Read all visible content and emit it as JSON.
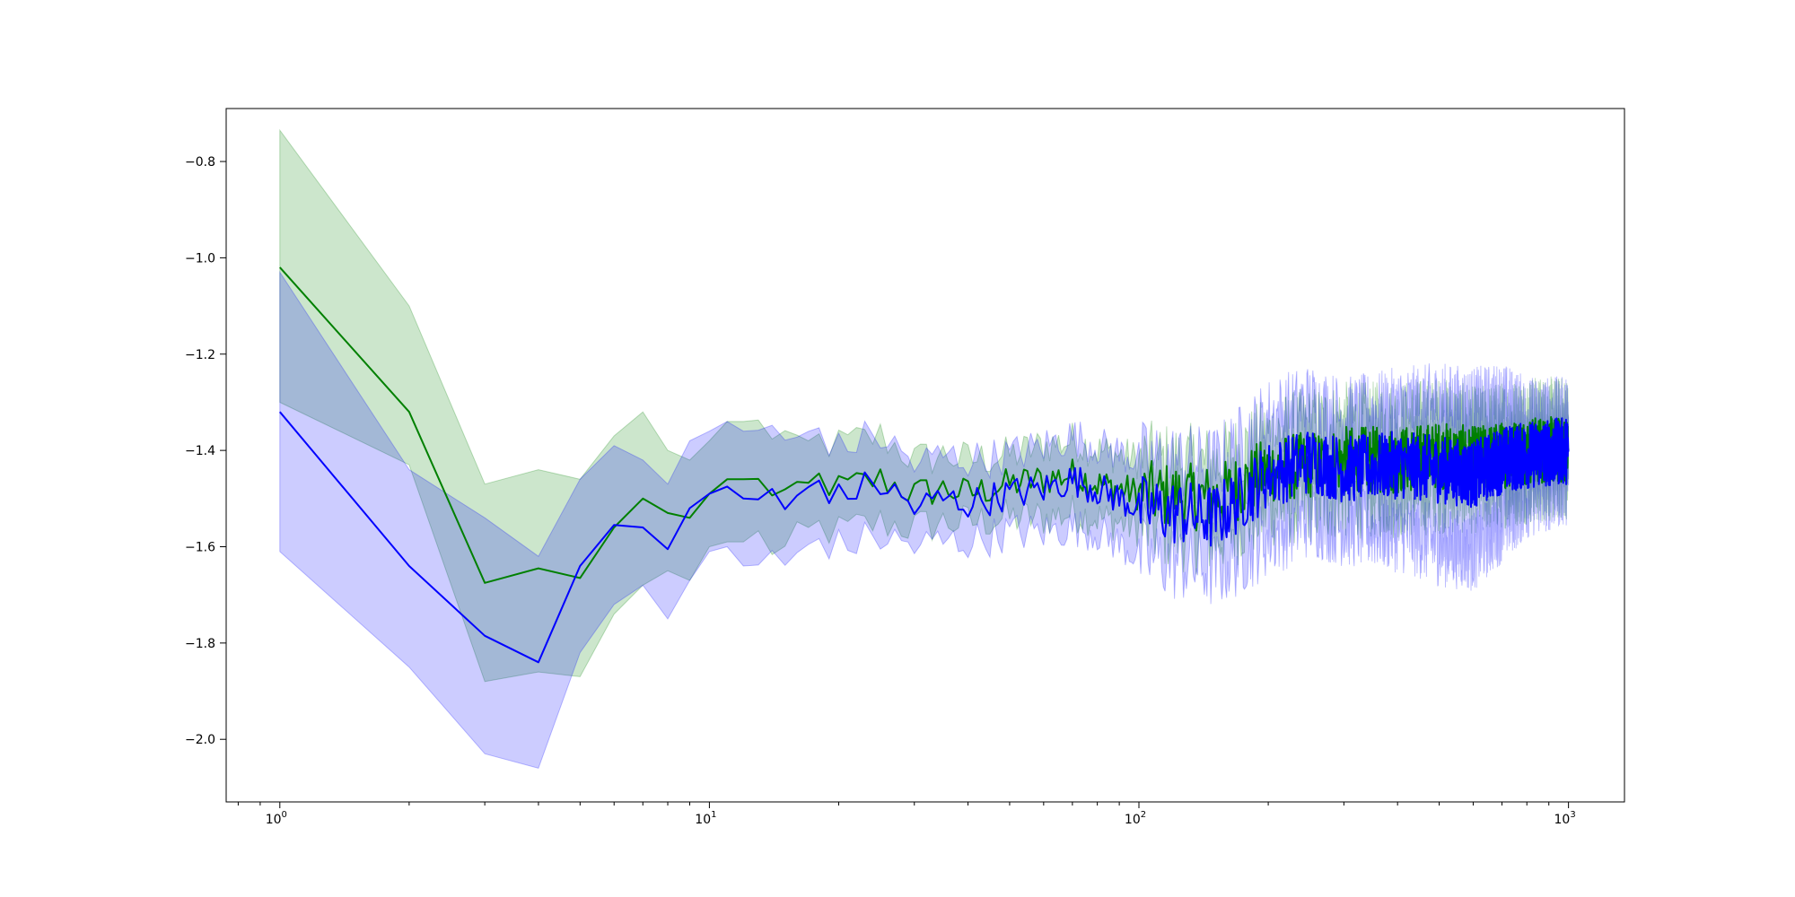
{
  "chart_data": {
    "type": "line",
    "title": "",
    "xlabel": "",
    "ylabel": "",
    "xscale": "log",
    "xlim": [
      0.75,
      1350
    ],
    "ylim": [
      -2.13,
      -0.69
    ],
    "grid": false,
    "legend": "none",
    "x_ticks": [
      {
        "base": "10",
        "exp": "0",
        "value": 1
      },
      {
        "base": "10",
        "exp": "1",
        "value": 10
      },
      {
        "base": "10",
        "exp": "2",
        "value": 100
      },
      {
        "base": "10",
        "exp": "3",
        "value": 1000
      }
    ],
    "y_ticks": [
      {
        "label": "−0.8",
        "value": -0.8
      },
      {
        "label": "−1.0",
        "value": -1.0
      },
      {
        "label": "−1.2",
        "value": -1.2
      },
      {
        "label": "−1.4",
        "value": -1.4
      },
      {
        "label": "−1.6",
        "value": -1.6
      },
      {
        "label": "−1.8",
        "value": -1.8
      },
      {
        "label": "−2.0",
        "value": -2.0
      }
    ],
    "series": [
      {
        "color": "#008000",
        "band_color": "#008000",
        "band_opacity": 0.2,
        "x": [
          1,
          2,
          3,
          4,
          5,
          6,
          7,
          8,
          9,
          10,
          11,
          12,
          13,
          14,
          15,
          16,
          18,
          20,
          22,
          25,
          30,
          35,
          40,
          50,
          60,
          70,
          80,
          100,
          150,
          200,
          250,
          300,
          400,
          500,
          600,
          700,
          800,
          1000
        ],
        "values": [
          -1.02,
          -1.32,
          -1.675,
          -1.645,
          -1.665,
          -1.56,
          -1.5,
          -1.53,
          -1.54,
          -1.49,
          -1.46,
          -1.46,
          -1.47,
          -1.48,
          -1.49,
          -1.5,
          -1.46,
          -1.48,
          -1.47,
          -1.46,
          -1.49,
          -1.48,
          -1.49,
          -1.47,
          -1.46,
          -1.45,
          -1.47,
          -1.49,
          -1.5,
          -1.44,
          -1.43,
          -1.42,
          -1.42,
          -1.41,
          -1.42,
          -1.41,
          -1.4,
          -1.4
        ],
        "lower": [
          -1.3,
          -1.43,
          -1.88,
          -1.86,
          -1.87,
          -1.74,
          -1.68,
          -1.65,
          -1.67,
          -1.6,
          -1.59,
          -1.59,
          -1.58,
          -1.6,
          -1.61,
          -1.59,
          -1.56,
          -1.57,
          -1.56,
          -1.55,
          -1.56,
          -1.55,
          -1.55,
          -1.54,
          -1.54,
          -1.53,
          -1.54,
          -1.56,
          -1.58,
          -1.52,
          -1.51,
          -1.5,
          -1.5,
          -1.49,
          -1.49,
          -1.48,
          -1.47,
          -1.46
        ],
        "upper": [
          -0.735,
          -1.1,
          -1.47,
          -1.44,
          -1.46,
          -1.37,
          -1.32,
          -1.4,
          -1.42,
          -1.38,
          -1.34,
          -1.34,
          -1.35,
          -1.36,
          -1.37,
          -1.41,
          -1.38,
          -1.39,
          -1.38,
          -1.37,
          -1.42,
          -1.41,
          -1.42,
          -1.41,
          -1.39,
          -1.38,
          -1.4,
          -1.42,
          -1.43,
          -1.37,
          -1.35,
          -1.34,
          -1.34,
          -1.33,
          -1.35,
          -1.34,
          -1.33,
          -1.33
        ]
      },
      {
        "color": "#0000ff",
        "band_color": "#0000ff",
        "band_opacity": 0.2,
        "x": [
          1,
          2,
          3,
          4,
          5,
          6,
          7,
          8,
          9,
          10,
          11,
          12,
          13,
          14,
          15,
          16,
          18,
          20,
          22,
          25,
          30,
          35,
          40,
          50,
          60,
          70,
          80,
          100,
          150,
          200,
          250,
          300,
          400,
          500,
          600,
          700,
          800,
          1000
        ],
        "values": [
          -1.32,
          -1.64,
          -1.785,
          -1.84,
          -1.64,
          -1.555,
          -1.56,
          -1.605,
          -1.52,
          -1.49,
          -1.475,
          -1.5,
          -1.495,
          -1.49,
          -1.54,
          -1.5,
          -1.46,
          -1.5,
          -1.48,
          -1.47,
          -1.52,
          -1.5,
          -1.51,
          -1.49,
          -1.48,
          -1.46,
          -1.48,
          -1.52,
          -1.54,
          -1.45,
          -1.42,
          -1.44,
          -1.43,
          -1.44,
          -1.45,
          -1.42,
          -1.41,
          -1.4
        ],
        "lower": [
          -1.61,
          -1.85,
          -2.03,
          -2.06,
          -1.82,
          -1.72,
          -1.68,
          -1.75,
          -1.67,
          -1.61,
          -1.6,
          -1.64,
          -1.63,
          -1.62,
          -1.66,
          -1.62,
          -1.58,
          -1.6,
          -1.59,
          -1.58,
          -1.6,
          -1.59,
          -1.59,
          -1.57,
          -1.57,
          -1.56,
          -1.57,
          -1.62,
          -1.65,
          -1.58,
          -1.54,
          -1.56,
          -1.57,
          -1.6,
          -1.61,
          -1.55,
          -1.5,
          -1.47
        ],
        "upper": [
          -1.03,
          -1.44,
          -1.54,
          -1.62,
          -1.46,
          -1.39,
          -1.42,
          -1.47,
          -1.38,
          -1.36,
          -1.34,
          -1.36,
          -1.35,
          -1.36,
          -1.4,
          -1.38,
          -1.35,
          -1.4,
          -1.38,
          -1.37,
          -1.43,
          -1.41,
          -1.42,
          -1.41,
          -1.39,
          -1.37,
          -1.39,
          -1.42,
          -1.43,
          -1.33,
          -1.3,
          -1.33,
          -1.31,
          -1.3,
          -1.31,
          -1.3,
          -1.33,
          -1.33
        ]
      }
    ]
  }
}
